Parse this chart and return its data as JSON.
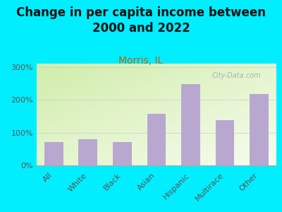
{
  "title": "Change in per capita income between\n2000 and 2022",
  "subtitle": "Morris, IL",
  "categories": [
    "All",
    "White",
    "Black",
    "Asian",
    "Hispanic",
    "Multirace",
    "Other"
  ],
  "values": [
    72,
    80,
    70,
    158,
    248,
    138,
    218
  ],
  "bar_color": "#b8a8d0",
  "background_outer": "#00eeff",
  "background_inner_left": "#cce8b0",
  "background_inner_right": "#f0f8e8",
  "title_fontsize": 12,
  "subtitle_fontsize": 10,
  "subtitle_color": "#c06000",
  "ylabel_ticks": [
    0,
    100,
    200,
    300
  ],
  "ylim": [
    0,
    310
  ],
  "watermark": "City-Data.com",
  "tick_label_color": "#555555",
  "tick_label_fontsize": 8
}
